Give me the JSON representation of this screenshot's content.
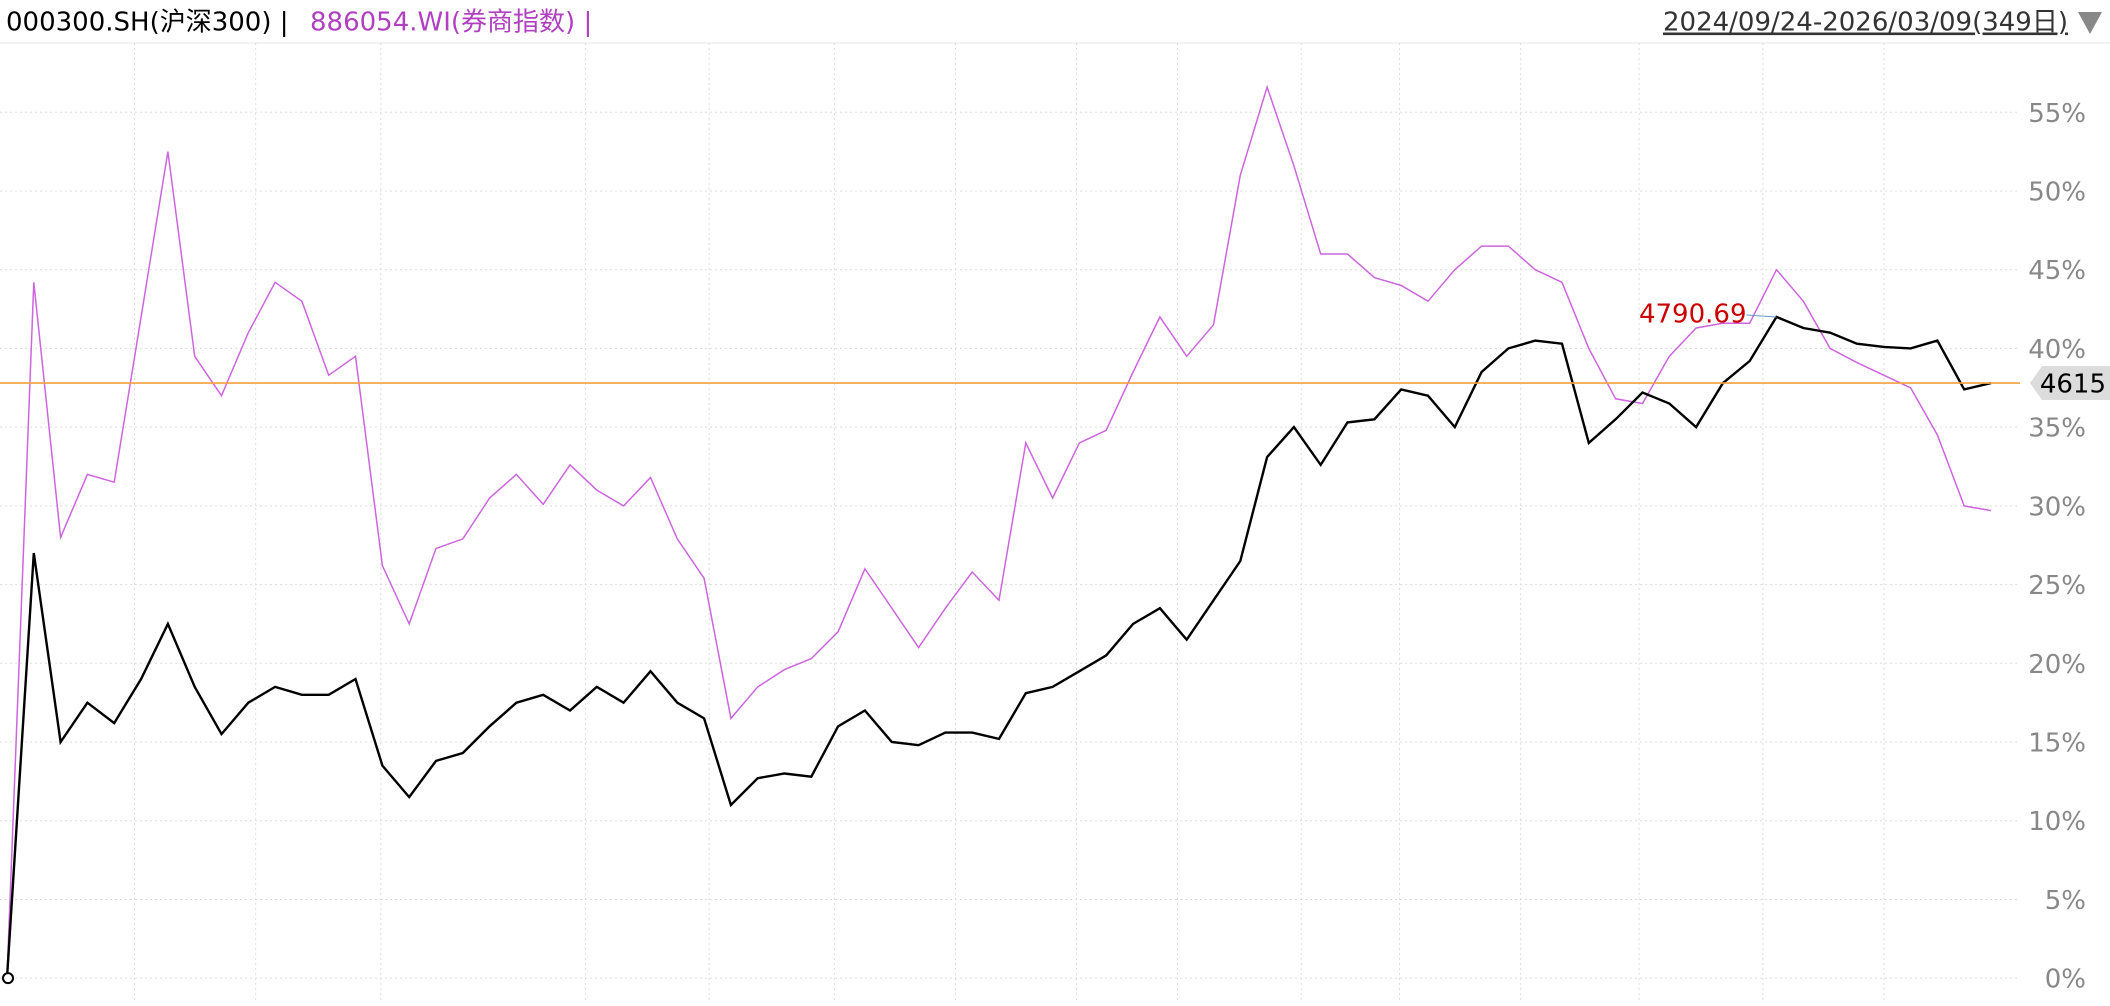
{
  "chart_data": {
    "type": "line",
    "legend": [
      "000300.SH(沪深300) |",
      "886054.WI(券商指数) |"
    ],
    "date_range": "2024/09/24-2026/03/09(349日)",
    "series": [
      {
        "name": "000300.SH(沪深300)",
        "color": "#000000",
        "values": [
          0,
          27,
          15,
          17.5,
          16.2,
          19,
          22.5,
          18.5,
          15.5,
          17.5,
          18.5,
          18,
          18,
          19,
          13.5,
          11.5,
          13.8,
          14.3,
          16,
          17.5,
          18,
          17,
          18.5,
          17.5,
          19.5,
          17.5,
          16.5,
          11,
          12.7,
          13,
          12.8,
          16,
          17,
          15,
          14.8,
          15.6,
          15.6,
          15.2,
          18.1,
          18.5,
          19.5,
          20.5,
          22.5,
          23.5,
          21.5,
          24,
          26.5,
          33.1,
          35,
          32.6,
          35.3,
          35.5,
          37.4,
          37,
          35,
          38.5,
          40,
          40.5,
          40.3,
          34,
          35.5,
          37.2,
          36.5,
          35,
          37.8,
          39.2,
          42,
          41.3,
          41,
          40.3,
          40.1,
          40,
          40.5,
          37.4,
          37.8
        ]
      },
      {
        "name": "886054.WI(券商指数)",
        "color": "#cc66dd",
        "values": [
          0,
          44.2,
          28,
          32,
          31.5,
          42,
          52.5,
          39.5,
          37,
          41,
          44.2,
          43,
          38.3,
          39.5,
          26.2,
          22.5,
          27.3,
          27.9,
          30.5,
          32,
          30.1,
          32.6,
          31,
          30,
          31.8,
          27.9,
          25.4,
          16.5,
          18.5,
          19.6,
          20.3,
          22,
          26,
          23.5,
          21,
          23.5,
          25.8,
          24,
          34,
          30.5,
          34,
          34.8,
          38.5,
          42,
          39.5,
          41.5,
          51,
          56.6,
          51.6,
          46,
          46,
          44.5,
          44,
          43,
          45,
          46.5,
          46.5,
          45,
          44.2,
          40,
          36.8,
          36.5,
          39.5,
          41.3,
          41.6,
          41.6,
          45,
          43,
          40,
          39.1,
          38.3,
          37.5,
          34.5,
          30,
          29.7
        ]
      }
    ],
    "ylim": [
      -1.45,
      59.4
    ],
    "yticks": [
      {
        "value": 0,
        "label": "0%"
      },
      {
        "value": 5,
        "label": "5%"
      },
      {
        "value": 10,
        "label": "10%"
      },
      {
        "value": 15,
        "label": "15%"
      },
      {
        "value": 20,
        "label": "20%"
      },
      {
        "value": 25,
        "label": "25%"
      },
      {
        "value": 30,
        "label": "30%"
      },
      {
        "value": 35,
        "label": "35%"
      },
      {
        "value": 40,
        "label": "40%"
      },
      {
        "value": 45,
        "label": "45%"
      },
      {
        "value": 50,
        "label": "50%"
      },
      {
        "value": 55,
        "label": "55%"
      }
    ],
    "grid": true,
    "price_line": {
      "value": 37.8,
      "label": "4615",
      "color": "#f5a040"
    },
    "annotation": {
      "text": "4790.69",
      "color": "#cc0000"
    }
  }
}
